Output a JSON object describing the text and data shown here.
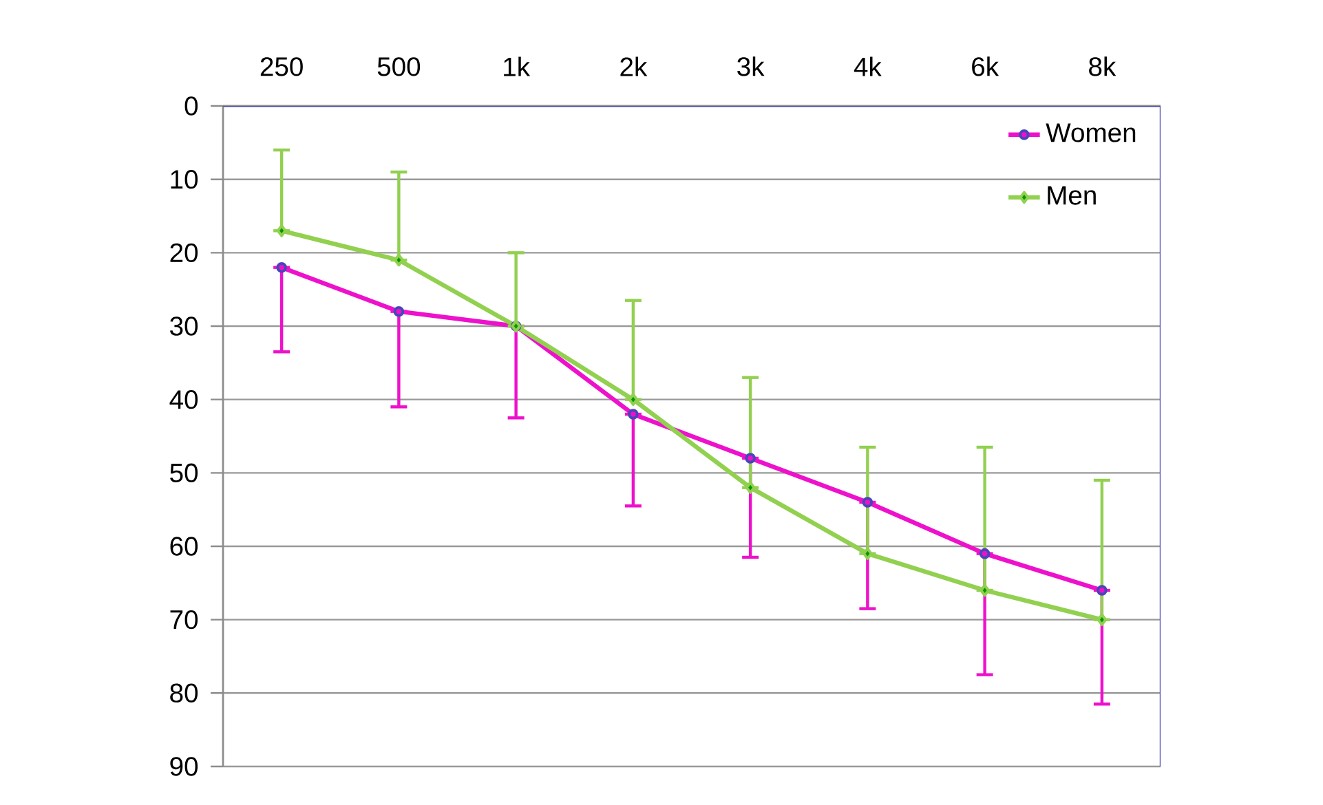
{
  "chart_data": {
    "type": "line",
    "categories": [
      "250",
      "500",
      "1k",
      "2k",
      "3k",
      "4k",
      "6k",
      "8k"
    ],
    "ylim": [
      90,
      0
    ],
    "yticks": [
      0,
      10,
      20,
      30,
      40,
      50,
      60,
      70,
      80,
      90
    ],
    "grid": "y",
    "legend": "top right",
    "line_style": "solid",
    "series": [
      {
        "name": "Women",
        "color": "#ee11cc",
        "marker": "circle",
        "values": [
          22,
          28,
          30,
          42,
          48,
          54,
          61,
          66
        ],
        "errors": [
          [
            22,
            33.5
          ],
          [
            28,
            41
          ],
          [
            30,
            42.5
          ],
          [
            42,
            54.5
          ],
          [
            48,
            61.5
          ],
          [
            54,
            68.5
          ],
          [
            61,
            77.5
          ],
          [
            66,
            81.5
          ]
        ]
      },
      {
        "name": "Men",
        "color": "#92d050",
        "marker": "diamond",
        "values": [
          17,
          21,
          30,
          40,
          52,
          61,
          66,
          70
        ],
        "errors": [
          [
            6,
            17
          ],
          [
            9,
            21
          ],
          [
            20,
            30
          ],
          [
            26.5,
            40
          ],
          [
            37,
            52
          ],
          [
            46.5,
            61
          ],
          [
            46.5,
            66
          ],
          [
            51,
            70
          ]
        ]
      }
    ]
  }
}
